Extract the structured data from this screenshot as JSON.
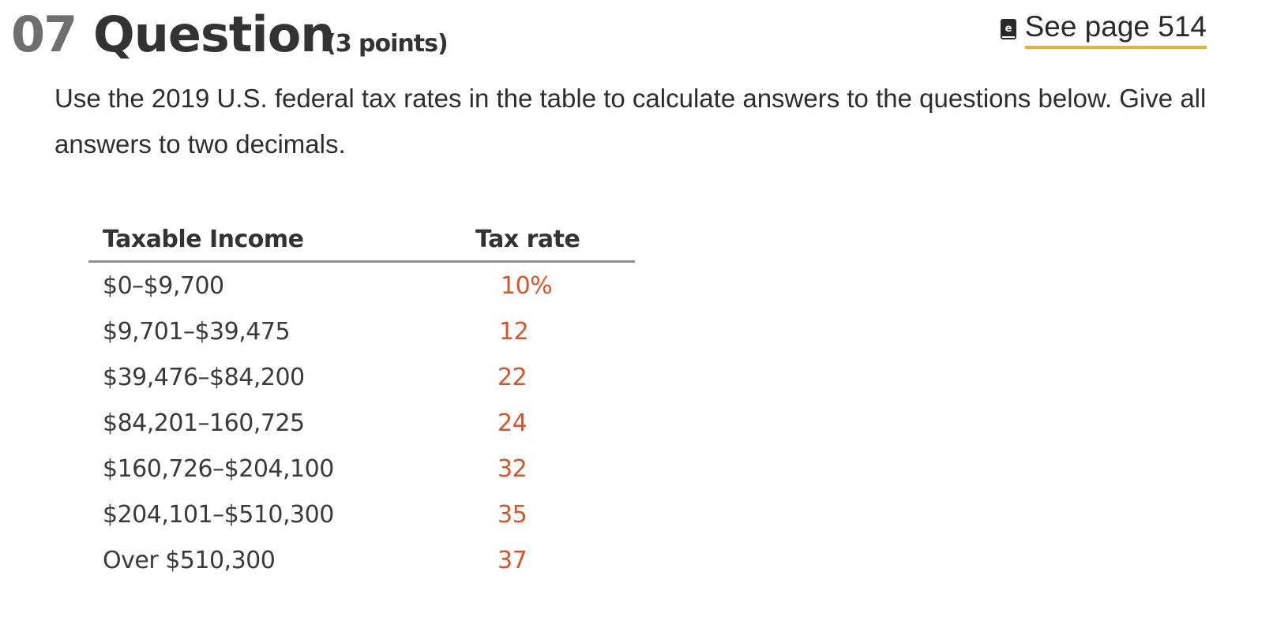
{
  "question": {
    "number": "07",
    "title": "Question",
    "points": "(3 points)"
  },
  "reference": {
    "link_label": "See page 514",
    "icon": "ebook-icon"
  },
  "instructions": "Use the 2019 U.S. federal tax rates in the table to calculate answers to the questions below. Give all answers to two decimals.",
  "table": {
    "headers": [
      "Taxable Income",
      "Tax rate"
    ],
    "rows": [
      {
        "income": "$0–$9,700",
        "rate": "10%"
      },
      {
        "income": "$9,701–$39,475",
        "rate": "12"
      },
      {
        "income": "$39,476–$84,200",
        "rate": "22"
      },
      {
        "income": "$84,201–160,725",
        "rate": "24"
      },
      {
        "income": "$160,726–$204,100",
        "rate": "32"
      },
      {
        "income": "$204,101–$510,300",
        "rate": "35"
      },
      {
        "income": "Over $510,300",
        "rate": "37"
      }
    ]
  },
  "colors": {
    "number": "#6f6f6f",
    "rate_text": "#d4552b",
    "link_underline": "#e2b43a"
  }
}
